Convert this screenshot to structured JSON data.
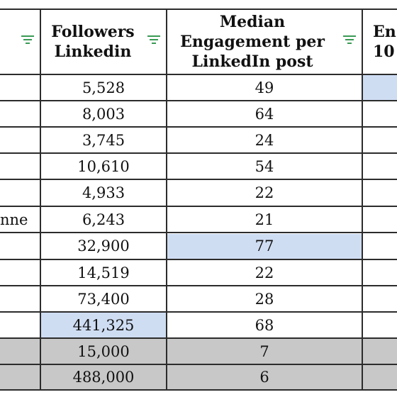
{
  "headers": {
    "col1": "",
    "followers": "Followers\nLinkedin",
    "engagement": "Median\nEngagement per\nLinkedIn post",
    "partial": "En\n10"
  },
  "rows": [
    {
      "label": "",
      "followers": "5,528",
      "engagement": "49"
    },
    {
      "label": "",
      "followers": "8,003",
      "engagement": "64"
    },
    {
      "label": "",
      "followers": "3,745",
      "engagement": "24"
    },
    {
      "label": "",
      "followers": "10,610",
      "engagement": "54"
    },
    {
      "label": "",
      "followers": "4,933",
      "engagement": "22"
    },
    {
      "label": "nne",
      "followers": "6,243",
      "engagement": "21"
    },
    {
      "label": "",
      "followers": "32,900",
      "engagement": "77"
    },
    {
      "label": "",
      "followers": "14,519",
      "engagement": "22"
    },
    {
      "label": "",
      "followers": "73,400",
      "engagement": "28"
    },
    {
      "label": "",
      "followers": "441,325",
      "engagement": "68"
    },
    {
      "label": "",
      "followers": "15,000",
      "engagement": "7"
    },
    {
      "label": "",
      "followers": "488,000",
      "engagement": "6"
    }
  ],
  "colors": {
    "highlight_blue": "#cfddf3",
    "highlight_grey": "#c8c8c8",
    "filter_icon": "#3a9a55",
    "grid": "#2c2c2c"
  }
}
